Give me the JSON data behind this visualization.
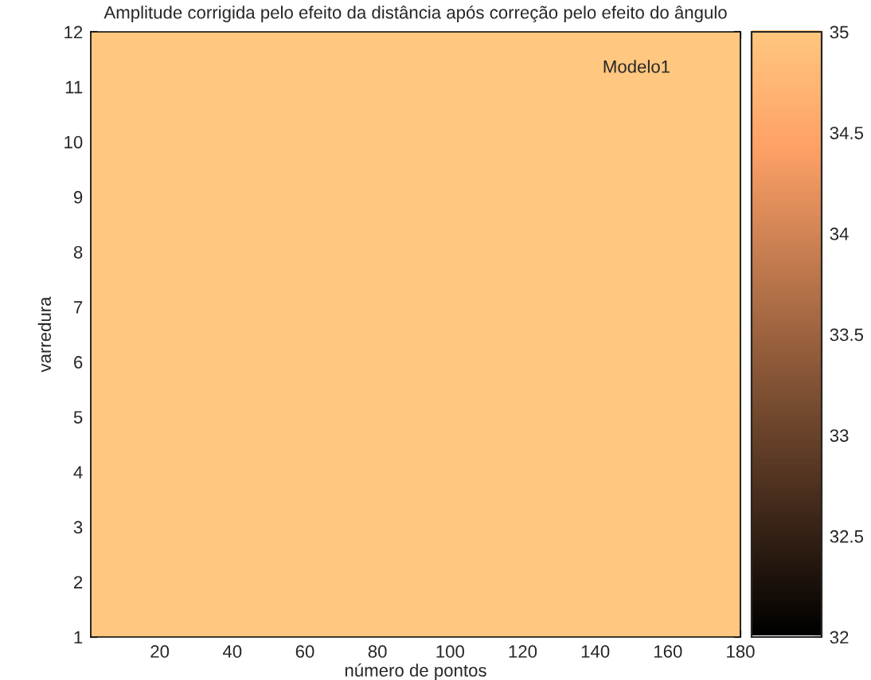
{
  "chart_data": {
    "type": "heatmap",
    "title": "Amplitude corrigida pelo efeito da distância após correção pelo efeito do ângulo",
    "xlabel": "número de pontos",
    "ylabel": "varredura",
    "annotations": [
      "Modelo1"
    ],
    "cells": [
      [
        35
      ]
    ],
    "xlim": [
      1,
      180
    ],
    "xticks": [
      20,
      40,
      60,
      80,
      100,
      120,
      140,
      160,
      180
    ],
    "ylim": [
      1,
      12
    ],
    "yticks": [
      1,
      2,
      3,
      4,
      5,
      6,
      7,
      8,
      9,
      10,
      11,
      12
    ],
    "clim": [
      32,
      35
    ],
    "cticks": [
      32,
      32.5,
      33,
      33.5,
      34,
      34.5,
      35
    ]
  }
}
